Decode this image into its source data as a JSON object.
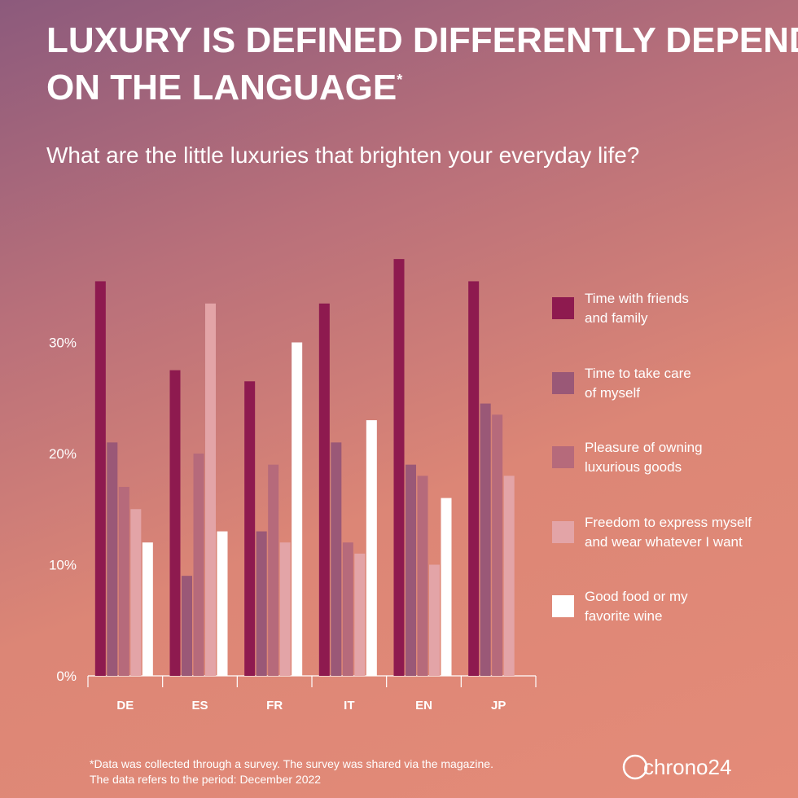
{
  "chart_data": {
    "type": "bar",
    "title": "LUXURY IS DEFINED DIFFERENTLY DEPENDING ON THE LANGUAGE",
    "title_mark": "*",
    "subtitle": "What are the little luxuries that brighten your everyday life?",
    "categories": [
      "DE",
      "ES",
      "FR",
      "IT",
      "EN",
      "JP"
    ],
    "series": [
      {
        "name": "Time with friends\nand family",
        "color": "#8e1a4f",
        "values": [
          35.5,
          27.5,
          26.5,
          33.5,
          37.5,
          35.5
        ]
      },
      {
        "name": "Time to take care\nof myself",
        "color": "#9a5877",
        "values": [
          21,
          9,
          13,
          21,
          19,
          24.5
        ]
      },
      {
        "name": "Pleasure of owning\nluxurious goods",
        "color": "#b66a7b",
        "values": [
          17,
          20,
          19,
          12,
          18,
          23.5
        ]
      },
      {
        "name": "Freedom to express myself\nand wear whatever I want",
        "color": "#e3a4a7",
        "values": [
          15,
          33.5,
          12,
          11,
          10,
          18
        ]
      },
      {
        "name": "Good food or my\nfavorite wine",
        "color": "#ffffff",
        "values": [
          12,
          13,
          30,
          23,
          16,
          null
        ]
      }
    ],
    "ylim": [
      0,
      40
    ],
    "yticks": [
      {
        "value": 0,
        "label": "0%"
      },
      {
        "value": 10,
        "label": "10%"
      },
      {
        "value": 20,
        "label": "20%"
      },
      {
        "value": 30,
        "label": "30%"
      }
    ],
    "footnote": "*Data was collected through a survey. The survey was shared via the magazine.\nThe data refers to the period: December 2022",
    "brand": "chrono24"
  }
}
